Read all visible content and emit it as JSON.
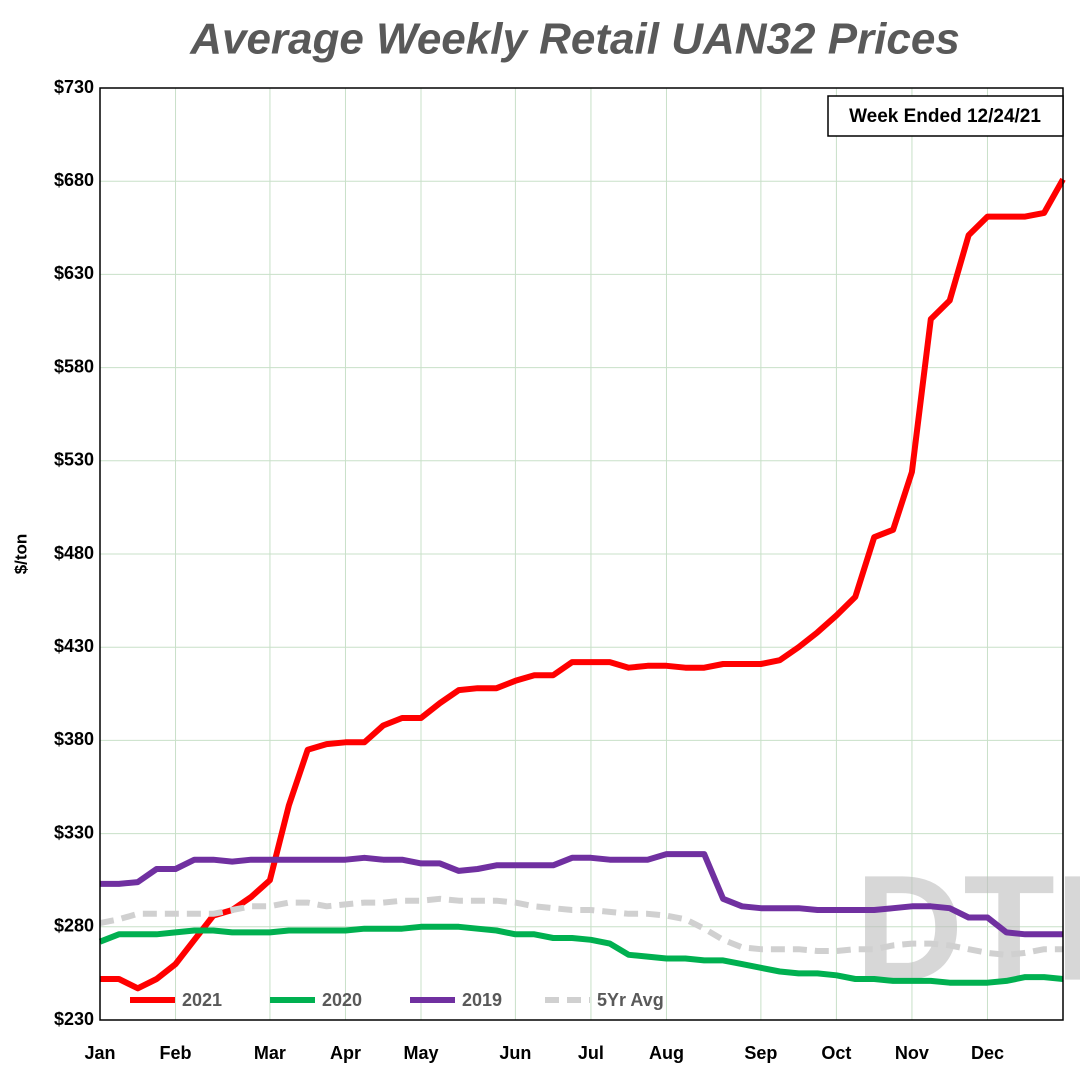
{
  "chart_data": {
    "type": "line",
    "title": "Average Weekly Retail UAN32 Prices",
    "y_label": "$/ton",
    "annotation": "Week Ended 12/24/21",
    "watermark": "DTN",
    "categories": [
      "Jan",
      null,
      null,
      null,
      "Feb",
      null,
      null,
      null,
      null,
      "Mar",
      null,
      null,
      null,
      "Apr",
      null,
      null,
      null,
      "May",
      null,
      null,
      null,
      null,
      "Jun",
      null,
      null,
      null,
      "Jul",
      null,
      null,
      null,
      "Aug",
      null,
      null,
      null,
      null,
      "Sep",
      null,
      null,
      null,
      "Oct",
      null,
      null,
      null,
      "Nov",
      null,
      null,
      null,
      "Dec",
      null,
      null,
      null,
      null
    ],
    "ylim": [
      230,
      730
    ],
    "yticks": [
      {
        "value": 230,
        "label": "$230"
      },
      {
        "value": 280,
        "label": "$280"
      },
      {
        "value": 330,
        "label": "$330"
      },
      {
        "value": 380,
        "label": "$380"
      },
      {
        "value": 430,
        "label": "$430"
      },
      {
        "value": 480,
        "label": "$480"
      },
      {
        "value": 530,
        "label": "$530"
      },
      {
        "value": 580,
        "label": "$580"
      },
      {
        "value": 630,
        "label": "$630"
      },
      {
        "value": 680,
        "label": "$680"
      },
      {
        "value": 730,
        "label": "$730"
      }
    ],
    "grid": true,
    "legend": "bottom-left",
    "series": [
      {
        "name": "2021",
        "color": "#ff0000",
        "dashed": false,
        "values": [
          252,
          252,
          247,
          252,
          260,
          273,
          286,
          289,
          296,
          305,
          345,
          375,
          378,
          379,
          379,
          388,
          392,
          392,
          400,
          407,
          408,
          408,
          412,
          415,
          415,
          422,
          422,
          422,
          419,
          420,
          420,
          419,
          419,
          421,
          421,
          421,
          423,
          430,
          438,
          447,
          457,
          489,
          493,
          524,
          606,
          616,
          651,
          661,
          661,
          661,
          663,
          681
        ]
      },
      {
        "name": "2020",
        "color": "#00b050",
        "dashed": false,
        "values": [
          272,
          276,
          276,
          276,
          277,
          278,
          278,
          277,
          277,
          277,
          278,
          278,
          278,
          278,
          279,
          279,
          279,
          280,
          280,
          280,
          279,
          278,
          276,
          276,
          274,
          274,
          273,
          271,
          265,
          264,
          263,
          263,
          262,
          262,
          260,
          258,
          256,
          255,
          255,
          254,
          252,
          252,
          251,
          251,
          251,
          250,
          250,
          250,
          251,
          253,
          253,
          252
        ]
      },
      {
        "name": "2019",
        "color": "#7030a0",
        "dashed": false,
        "values": [
          303,
          303,
          304,
          311,
          311,
          316,
          316,
          315,
          316,
          316,
          316,
          316,
          316,
          316,
          317,
          316,
          316,
          314,
          314,
          310,
          311,
          313,
          313,
          313,
          313,
          317,
          317,
          316,
          316,
          316,
          319,
          319,
          319,
          295,
          291,
          290,
          290,
          290,
          289,
          289,
          289,
          289,
          290,
          291,
          291,
          290,
          285,
          285,
          277,
          276,
          276,
          276
        ]
      },
      {
        "name": "5Yr Avg",
        "color": "#d0d0d0",
        "dashed": true,
        "values": [
          282,
          284,
          287,
          287,
          287,
          287,
          287,
          289,
          291,
          291,
          293,
          293,
          291,
          292,
          293,
          293,
          294,
          294,
          295,
          294,
          294,
          294,
          293,
          291,
          290,
          289,
          289,
          288,
          287,
          287,
          286,
          284,
          279,
          273,
          269,
          268,
          268,
          268,
          267,
          267,
          268,
          268,
          270,
          271,
          271,
          270,
          268,
          266,
          265,
          266,
          268,
          268
        ]
      }
    ]
  }
}
